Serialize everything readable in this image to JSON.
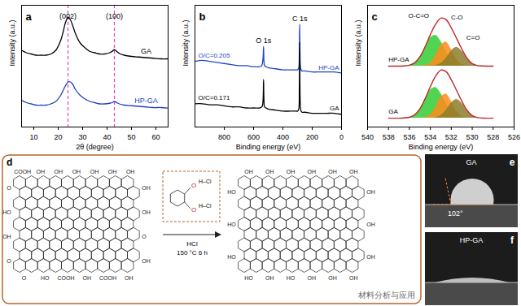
{
  "chart_data": [
    {
      "type": "line",
      "title": "a",
      "x_label": "2θ (degree)",
      "y_label": "Intensity (a.u.)",
      "x": [
        5,
        7,
        9,
        11,
        13,
        15,
        17,
        19,
        21,
        22,
        23,
        24,
        25,
        26,
        27,
        29,
        31,
        33,
        35,
        37,
        39,
        41,
        42,
        43,
        44,
        45,
        47,
        50,
        53,
        56,
        59,
        62,
        65
      ],
      "series": [
        {
          "name": "GA",
          "color": "#000000",
          "values": [
            63,
            61,
            60,
            59,
            59,
            59,
            60,
            63,
            71,
            78,
            86,
            90,
            88,
            83,
            77,
            69,
            65,
            62,
            61,
            60,
            60,
            61,
            62,
            63.5,
            62,
            60.5,
            59,
            58,
            57.5,
            57,
            56.5,
            56,
            56
          ]
        },
        {
          "name": "HP-GA",
          "color": "#2040c0",
          "values": [
            22,
            20,
            19,
            18,
            18,
            18,
            19,
            21,
            26,
            30,
            34,
            37,
            37,
            35,
            31,
            26,
            23,
            21,
            20,
            19,
            19,
            19.5,
            20,
            21,
            20,
            19,
            18,
            17.5,
            17,
            16.5,
            16,
            16,
            15.5
          ]
        }
      ],
      "reference_lines": [
        {
          "x": 24,
          "label": "(002)",
          "color": "#e040d0",
          "line_style": "dashed"
        },
        {
          "x": 43,
          "label": "(100)",
          "color": "#e040d0",
          "line_style": "dashed"
        }
      ],
      "xlim": [
        5,
        65
      ],
      "xticks": [
        10,
        20,
        30,
        40,
        50,
        60
      ],
      "ylim": [
        0,
        100
      ],
      "yticks": [],
      "tick_labels": "x"
    },
    {
      "type": "line",
      "title": "b",
      "x_label": "Binding energy (eV)",
      "y_label": "Intensity (a.u.)",
      "x": [
        1000,
        950,
        900,
        850,
        800,
        750,
        700,
        650,
        600,
        560,
        545,
        540,
        535,
        532,
        529,
        525,
        515,
        500,
        450,
        400,
        350,
        310,
        300,
        292,
        288,
        285,
        282,
        278,
        270,
        250,
        200,
        150,
        100,
        50,
        0
      ],
      "series": [
        {
          "name": "HP-GA",
          "color": "#2045c8",
          "annotation": "O/C=0.205",
          "values": [
            62,
            63,
            62,
            61,
            60,
            59,
            58,
            58,
            57,
            57,
            58,
            60,
            66,
            76,
            62,
            58,
            57,
            56,
            55,
            54,
            54,
            54,
            54,
            56,
            70,
            97,
            62,
            55,
            53,
            53,
            52,
            52,
            52,
            52,
            51
          ]
        },
        {
          "name": "GA",
          "color": "#000000",
          "annotation": "O/C=0.171",
          "values": [
            22,
            22,
            21,
            21,
            20,
            19,
            19,
            18,
            18,
            18,
            19,
            20,
            26,
            45,
            25,
            19,
            18,
            17,
            16,
            15,
            15,
            15,
            15,
            17,
            35,
            80,
            25,
            16,
            14,
            14,
            13,
            13,
            13,
            13,
            12
          ]
        }
      ],
      "peak_labels": [
        {
          "x": 532,
          "label": "O 1s"
        },
        {
          "x": 285,
          "label": "C 1s"
        }
      ],
      "xlim": [
        1000,
        0
      ],
      "xticks": [
        800,
        600,
        400,
        200,
        0
      ],
      "ylim": [
        0,
        115
      ],
      "yticks": [],
      "tick_labels": "x"
    },
    {
      "type": "area",
      "title": "c",
      "x_label": "Binding energy (eV)",
      "y_label": "Intensity (a.u.)",
      "x": [
        538,
        537.5,
        537,
        536.5,
        536,
        535.5,
        535,
        534.5,
        534,
        533.5,
        533,
        532.5,
        532,
        531.5,
        531,
        530.5,
        530,
        529.5,
        529,
        528.5,
        528
      ],
      "components": [
        {
          "name": "O-C=O",
          "color": "#33cc33"
        },
        {
          "name": "C-O",
          "color": "#ff8c1a"
        },
        {
          "name": "C=O",
          "color": "#8b7d2a"
        }
      ],
      "envelope_color": "#c0282d",
      "spectra": [
        {
          "name": "HP-GA",
          "baseline": 55,
          "components": [
            [
              55,
              55,
              55,
              55.2,
              55.8,
              58,
              63.3,
              72,
              80.4,
              82.8,
              77.4,
              68.3,
              60.8,
              56.8,
              55.4,
              55.1,
              55,
              55,
              55,
              55,
              55
            ],
            [
              55,
              55,
              55,
              55,
              55,
              55,
              55.1,
              55.6,
              58,
              64.6,
              73.7,
              76.8,
              70.2,
              61.4,
              56.6,
              55.2,
              55,
              55,
              55,
              55,
              55
            ],
            [
              55,
              55,
              55,
              55,
              55,
              55,
              55,
              55,
              55.1,
              55.5,
              57.3,
              62,
              68.6,
              72,
              68.6,
              62,
              57.3,
              55.5,
              55.1,
              55,
              55
            ]
          ],
          "envelope": [
            55,
            55,
            55,
            55.2,
            55.8,
            58,
            63.4,
            72.6,
            83.5,
            92.9,
            98.4,
            97.1,
            89.6,
            80.2,
            70.6,
            62.3,
            57.3,
            55.5,
            55.1,
            55,
            55
          ]
        },
        {
          "name": "GA",
          "baseline": 8,
          "components": [
            [
              8,
              8,
              8,
              8.2,
              8.8,
              11,
              16.3,
              25,
              33.4,
              35.8,
              30.4,
              21.3,
              13.8,
              9.8,
              8.4,
              8.1,
              8,
              8,
              8,
              8,
              8
            ],
            [
              8,
              8,
              8,
              8,
              8,
              8,
              8.1,
              8.6,
              11,
              17.6,
              26.7,
              29.8,
              23.2,
              14.4,
              9.6,
              8.2,
              8,
              8,
              8,
              8,
              8
            ],
            [
              8,
              8,
              8,
              8,
              8,
              8,
              8,
              8,
              8.1,
              8.5,
              10.3,
              15,
              21.6,
              25,
              21.6,
              15,
              10.3,
              8.5,
              8.1,
              8,
              8
            ]
          ],
          "envelope": [
            8,
            8,
            8,
            8.2,
            8.8,
            11,
            16.4,
            25.6,
            36.5,
            45.9,
            51.4,
            50.1,
            42.6,
            33.2,
            23.6,
            15.3,
            10.3,
            8.5,
            8.1,
            8,
            8
          ]
        }
      ],
      "xlim": [
        540,
        526
      ],
      "xticks": [
        540,
        538,
        536,
        534,
        532,
        530,
        528,
        526
      ],
      "ylim": [
        0,
        110
      ],
      "yticks": [],
      "tick_labels": "x"
    }
  ],
  "diagram": {
    "label": "d",
    "before": {
      "top": [
        "COOH",
        "OH",
        "OH",
        "OH",
        "OH",
        "OH",
        "OH"
      ],
      "bottom": [
        "O",
        "HO",
        "COOH",
        "OH",
        "COOH",
        "OH"
      ],
      "left": [
        "O",
        "HO",
        "OH",
        "O"
      ],
      "right": [
        "OH",
        "OH",
        "O",
        "OH"
      ]
    },
    "after": {
      "top": [
        "OH",
        "OH",
        "OH",
        "OH",
        "OH",
        "OH"
      ],
      "bottom": [
        "HO",
        "OH",
        "HO",
        "OH",
        "OH",
        "OH"
      ],
      "left": [
        "HO",
        "HO",
        "HO"
      ],
      "right": [
        "OH",
        "OH",
        "OH"
      ]
    },
    "reagent": "HCl",
    "conditions": "150 °C 6 h",
    "inset": {
      "atoms": [
        "O",
        "O"
      ],
      "bonds": [
        "H–Cl",
        "H–Cl"
      ]
    }
  },
  "photos": [
    {
      "label": "e",
      "sample": "GA",
      "contact_angle": {
        "value": 102,
        "label": "102°"
      }
    },
    {
      "label": "f",
      "sample": "HP-GA"
    }
  ],
  "watermark": "材料分析与应用"
}
